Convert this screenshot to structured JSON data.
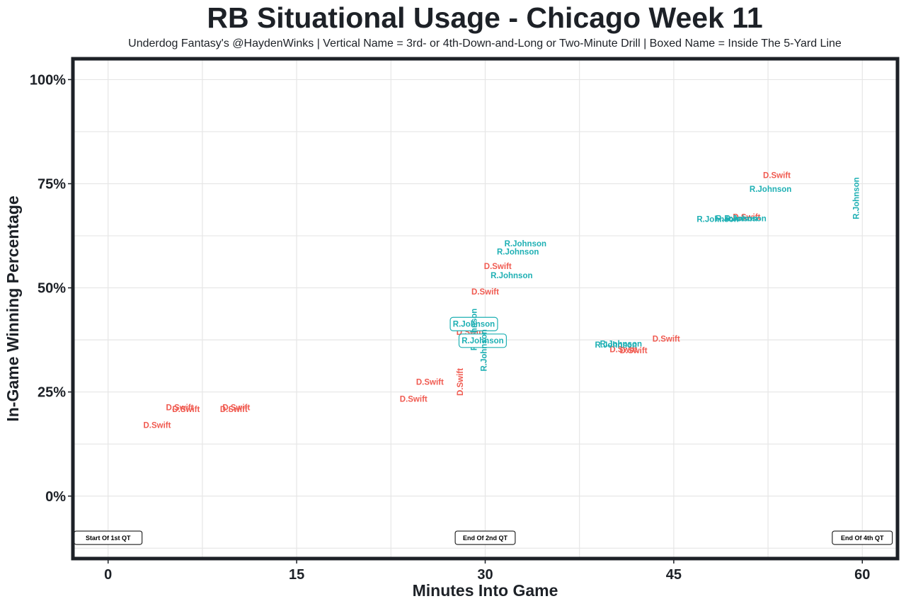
{
  "chart_data": {
    "type": "scatter",
    "title": "RB Situational Usage - Chicago Week 11",
    "subtitle": "Underdog Fantasy's @HaydenWinks | Vertical Name = 3rd- or 4th-Down-and-Long or Two-Minute Drill | Boxed Name = Inside The 5-Yard Line",
    "xlabel": "Minutes Into Game",
    "ylabel": "In-Game Winning Percentage",
    "xlim": [
      -2.8,
      62.8
    ],
    "ylim": [
      -15,
      105
    ],
    "x_ticks": [
      0,
      15,
      30,
      45,
      60
    ],
    "x_tick_labels": [
      "0",
      "15",
      "30",
      "45",
      "60"
    ],
    "y_ticks": [
      0,
      25,
      50,
      75,
      100
    ],
    "y_tick_labels": [
      "0%",
      "25%",
      "50%",
      "75%",
      "100%"
    ],
    "grid": true,
    "colors": {
      "D.Swift": "#f05a50",
      "R.Johnson": "#1fb0b4"
    },
    "series": [
      {
        "name": "D.Swift",
        "points": [
          {
            "x": 3.9,
            "y": 17,
            "label": "D.Swift"
          },
          {
            "x": 5.7,
            "y": 21.3,
            "label": "D.Swift"
          },
          {
            "x": 6.2,
            "y": 20.9,
            "label": "D.Swift"
          },
          {
            "x": 10.2,
            "y": 21.3,
            "label": "D.Swift"
          },
          {
            "x": 10.0,
            "y": 20.9,
            "label": "D.Swift"
          },
          {
            "x": 24.3,
            "y": 23.3,
            "label": "D.Swift"
          },
          {
            "x": 25.6,
            "y": 27.4,
            "label": "D.Swift"
          },
          {
            "x": 28.0,
            "y": 27.4,
            "label": "D.Swift",
            "vertical": true
          },
          {
            "x": 28.8,
            "y": 39.4,
            "label": "D.Swift"
          },
          {
            "x": 30.0,
            "y": 49.1,
            "label": "D.Swift"
          },
          {
            "x": 31.0,
            "y": 55.2,
            "label": "D.Swift"
          },
          {
            "x": 41.0,
            "y": 35.2,
            "label": "D.Swift"
          },
          {
            "x": 41.8,
            "y": 35.0,
            "label": "D.Swift"
          },
          {
            "x": 44.4,
            "y": 37.8,
            "label": "D.Swift"
          },
          {
            "x": 50.8,
            "y": 67.0,
            "label": "D.Swift"
          },
          {
            "x": 53.2,
            "y": 77.0,
            "label": "D.Swift"
          }
        ]
      },
      {
        "name": "R.Johnson",
        "points": [
          {
            "x": 29.1,
            "y": 41.3,
            "label": "R.Johnson",
            "boxed": true
          },
          {
            "x": 29.1,
            "y": 40.0,
            "label": "R.Johnson",
            "vertical": true
          },
          {
            "x": 29.8,
            "y": 37.3,
            "label": "R.Johnson",
            "boxed": true
          },
          {
            "x": 29.9,
            "y": 35.0,
            "label": "R.Johnson",
            "vertical": true
          },
          {
            "x": 32.1,
            "y": 53.0,
            "label": "R.Johnson"
          },
          {
            "x": 32.6,
            "y": 58.7,
            "label": "R.Johnson"
          },
          {
            "x": 33.2,
            "y": 60.6,
            "label": "R.Johnson"
          },
          {
            "x": 40.4,
            "y": 36.3,
            "label": "R.Johnson"
          },
          {
            "x": 40.8,
            "y": 36.6,
            "label": "R.Johnson"
          },
          {
            "x": 48.5,
            "y": 66.5,
            "label": "R.Johnson"
          },
          {
            "x": 50.0,
            "y": 66.7,
            "label": "R.Johnson"
          },
          {
            "x": 50.7,
            "y": 66.7,
            "label": "R.Johnson"
          },
          {
            "x": 52.7,
            "y": 73.7,
            "label": "R.Johnson"
          },
          {
            "x": 59.5,
            "y": 71.5,
            "label": "R.Johnson",
            "vertical": true
          }
        ]
      }
    ],
    "annotations": [
      {
        "x": 0,
        "label": "Start Of 1st QT"
      },
      {
        "x": 30,
        "label": "End Of 2nd QT"
      },
      {
        "x": 60,
        "label": "End Of 4th QT"
      }
    ]
  }
}
